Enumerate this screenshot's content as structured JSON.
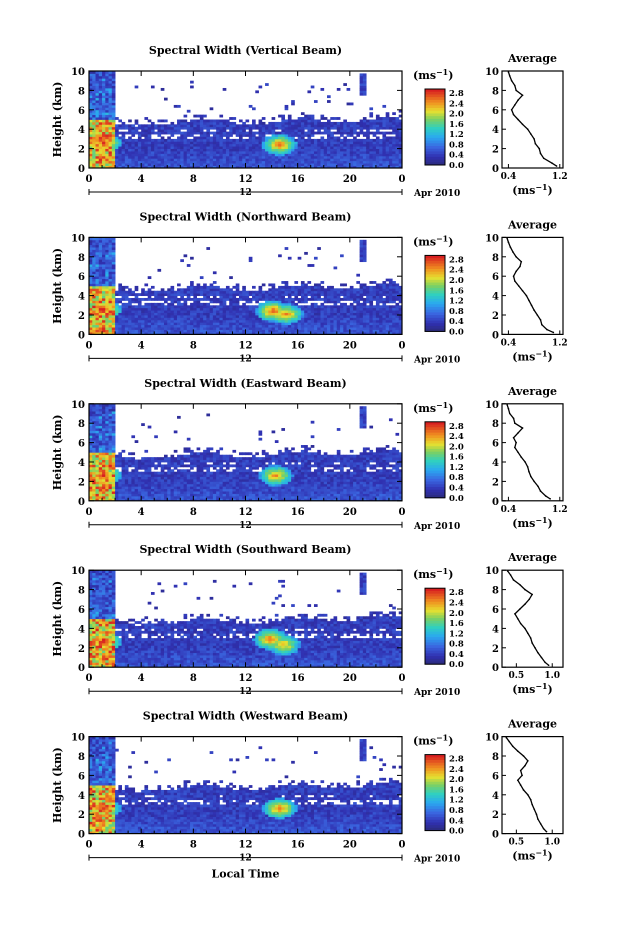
{
  "figure": {
    "ylabel": "Height (km)",
    "xlabel": "Local Time",
    "date_label": "Apr 2010",
    "day_mark": "12",
    "colorbar_unit": "(ms⁻¹)",
    "average_title": "Average",
    "average_xlabel": "(ms⁻¹)"
  },
  "chart_data": [
    {
      "type": "heatmap",
      "title": "Spectral Width (Vertical Beam)",
      "xlabel": "Local Time",
      "ylabel": "Height (km)",
      "x_ticks": [
        "0",
        "4",
        "8",
        "12",
        "16",
        "20",
        "0"
      ],
      "xlim": [
        0,
        24
      ],
      "y_ticks": [
        "0",
        "2",
        "4",
        "6",
        "8",
        "10"
      ],
      "ylim": [
        0,
        10
      ],
      "colorbar": {
        "unit": "(ms⁻¹)",
        "range": [
          0,
          2.8
        ],
        "ticks": [
          "2.8",
          "2.4",
          "2.0",
          "1.6",
          "1.2",
          "0.8",
          "0.4",
          "0.0"
        ]
      },
      "hotspots": [
        [
          1.0,
          2.5,
          2.6
        ],
        [
          14.5,
          2.3,
          2.4
        ]
      ],
      "average_profile": {
        "title": "Average",
        "xlabel": "(ms⁻¹)",
        "x_ticks": [
          "0.4",
          "1.2"
        ],
        "xlim": [
          0.3,
          1.25
        ],
        "ylim": [
          0,
          10
        ],
        "heights": [
          0.2,
          0.5,
          1.0,
          1.5,
          2.0,
          2.5,
          3.0,
          3.5,
          4.0,
          4.5,
          5.0,
          5.5,
          6.0,
          6.5,
          7.0,
          7.5,
          8.0,
          8.5,
          9.0,
          9.5,
          9.9
        ],
        "values": [
          1.15,
          1.08,
          0.95,
          0.9,
          0.88,
          0.82,
          0.8,
          0.75,
          0.7,
          0.62,
          0.55,
          0.48,
          0.45,
          0.5,
          0.55,
          0.62,
          0.52,
          0.5,
          0.45,
          0.42,
          0.4
        ]
      }
    },
    {
      "type": "heatmap",
      "title": "Spectral Width (Northward Beam)",
      "xlabel": "Local Time",
      "ylabel": "Height (km)",
      "x_ticks": [
        "0",
        "4",
        "8",
        "12",
        "16",
        "20",
        "0"
      ],
      "xlim": [
        0,
        24
      ],
      "y_ticks": [
        "0",
        "2",
        "4",
        "6",
        "8",
        "10"
      ],
      "ylim": [
        0,
        10
      ],
      "colorbar": {
        "unit": "(ms⁻¹)",
        "range": [
          0,
          2.8
        ],
        "ticks": [
          "2.8",
          "2.4",
          "2.0",
          "1.6",
          "1.2",
          "0.8",
          "0.4",
          "0.0"
        ]
      },
      "hotspots": [
        [
          1.0,
          2.5,
          2.6
        ],
        [
          14.0,
          2.3,
          2.5
        ],
        [
          15.0,
          2.0,
          2.3
        ]
      ],
      "average_profile": {
        "title": "Average",
        "xlabel": "(ms⁻¹)",
        "x_ticks": [
          "0.4",
          "1.2"
        ],
        "xlim": [
          0.3,
          1.25
        ],
        "ylim": [
          0,
          10
        ],
        "heights": [
          0.2,
          0.5,
          1.0,
          1.5,
          2.0,
          2.5,
          3.0,
          3.5,
          4.0,
          4.5,
          5.0,
          5.5,
          6.0,
          6.5,
          7.0,
          7.5,
          8.0,
          8.5,
          9.0,
          9.5,
          9.9
        ],
        "values": [
          1.1,
          1.0,
          0.92,
          0.9,
          0.85,
          0.8,
          0.76,
          0.72,
          0.68,
          0.62,
          0.56,
          0.5,
          0.48,
          0.52,
          0.58,
          0.6,
          0.52,
          0.47,
          0.43,
          0.4,
          0.38
        ]
      }
    },
    {
      "type": "heatmap",
      "title": "Spectral Width (Eastward Beam)",
      "xlabel": "Local Time",
      "ylabel": "Height (km)",
      "x_ticks": [
        "0",
        "4",
        "8",
        "12",
        "16",
        "20",
        "0"
      ],
      "xlim": [
        0,
        24
      ],
      "y_ticks": [
        "0",
        "2",
        "4",
        "6",
        "8",
        "10"
      ],
      "ylim": [
        0,
        10
      ],
      "colorbar": {
        "unit": "(ms⁻¹)",
        "range": [
          0,
          2.8
        ],
        "ticks": [
          "2.8",
          "2.4",
          "2.0",
          "1.6",
          "1.2",
          "0.8",
          "0.4",
          "0.0"
        ]
      },
      "hotspots": [
        [
          1.0,
          2.5,
          2.6
        ],
        [
          14.2,
          2.5,
          2.3
        ]
      ],
      "average_profile": {
        "title": "Average",
        "xlabel": "(ms⁻¹)",
        "x_ticks": [
          "0.4",
          "1.2"
        ],
        "xlim": [
          0.3,
          1.25
        ],
        "ylim": [
          0,
          10
        ],
        "heights": [
          0.2,
          0.5,
          1.0,
          1.5,
          2.0,
          2.5,
          3.0,
          3.5,
          4.0,
          4.5,
          5.0,
          5.5,
          6.0,
          6.5,
          7.0,
          7.5,
          8.0,
          8.5,
          9.0,
          9.5,
          9.9
        ],
        "values": [
          1.05,
          0.98,
          0.9,
          0.86,
          0.8,
          0.75,
          0.72,
          0.7,
          0.66,
          0.6,
          0.55,
          0.5,
          0.52,
          0.48,
          0.55,
          0.62,
          0.5,
          0.48,
          0.42,
          0.4,
          0.38
        ]
      }
    },
    {
      "type": "heatmap",
      "title": "Spectral Width (Southward Beam)",
      "xlabel": "Local Time",
      "ylabel": "Height (km)",
      "x_ticks": [
        "0",
        "4",
        "8",
        "12",
        "16",
        "20",
        "0"
      ],
      "xlim": [
        0,
        24
      ],
      "y_ticks": [
        "0",
        "2",
        "4",
        "6",
        "8",
        "10"
      ],
      "ylim": [
        0,
        10
      ],
      "colorbar": {
        "unit": "(ms⁻¹)",
        "range": [
          0,
          2.8
        ],
        "ticks": [
          "2.8",
          "2.4",
          "2.0",
          "1.6",
          "1.2",
          "0.8",
          "0.4",
          "0.0"
        ]
      },
      "hotspots": [
        [
          1.0,
          2.5,
          2.6
        ],
        [
          13.8,
          2.8,
          2.4
        ],
        [
          14.8,
          2.2,
          2.2
        ]
      ],
      "average_profile": {
        "title": "Average",
        "xlabel": "(ms⁻¹)",
        "x_ticks": [
          "0.5",
          "1.0"
        ],
        "xlim": [
          0.3,
          1.15
        ],
        "ylim": [
          0,
          10
        ],
        "heights": [
          0.2,
          0.5,
          1.0,
          1.5,
          2.0,
          2.5,
          3.0,
          3.5,
          4.0,
          4.5,
          5.0,
          5.5,
          6.0,
          6.5,
          7.0,
          7.5,
          8.0,
          8.5,
          9.0,
          9.5,
          9.9
        ],
        "values": [
          0.95,
          0.9,
          0.85,
          0.8,
          0.76,
          0.72,
          0.7,
          0.66,
          0.62,
          0.56,
          0.52,
          0.48,
          0.55,
          0.62,
          0.68,
          0.72,
          0.62,
          0.55,
          0.46,
          0.42,
          0.38
        ]
      }
    },
    {
      "type": "heatmap",
      "title": "Spectral Width (Westward Beam)",
      "xlabel": "Local Time",
      "ylabel": "Height (km)",
      "x_ticks": [
        "0",
        "4",
        "8",
        "12",
        "16",
        "20",
        "0"
      ],
      "xlim": [
        0,
        24
      ],
      "y_ticks": [
        "0",
        "2",
        "4",
        "6",
        "8",
        "10"
      ],
      "ylim": [
        0,
        10
      ],
      "colorbar": {
        "unit": "(ms⁻¹)",
        "range": [
          0,
          2.8
        ],
        "ticks": [
          "2.8",
          "2.4",
          "2.0",
          "1.6",
          "1.2",
          "0.8",
          "0.4",
          "0.0"
        ]
      },
      "hotspots": [
        [
          1.0,
          2.5,
          2.6
        ],
        [
          14.5,
          2.5,
          2.4
        ]
      ],
      "average_profile": {
        "title": "Average",
        "xlabel": "(ms⁻¹)",
        "x_ticks": [
          "0.5",
          "1.0"
        ],
        "xlim": [
          0.3,
          1.15
        ],
        "ylim": [
          0,
          10
        ],
        "heights": [
          0.2,
          0.5,
          1.0,
          1.5,
          2.0,
          2.5,
          3.0,
          3.5,
          4.0,
          4.5,
          5.0,
          5.5,
          6.0,
          6.5,
          7.0,
          7.5,
          8.0,
          8.5,
          9.0,
          9.5,
          9.9
        ],
        "values": [
          0.92,
          0.88,
          0.84,
          0.8,
          0.78,
          0.75,
          0.72,
          0.7,
          0.66,
          0.6,
          0.56,
          0.52,
          0.58,
          0.56,
          0.62,
          0.66,
          0.6,
          0.52,
          0.45,
          0.4,
          0.36
        ]
      }
    }
  ]
}
